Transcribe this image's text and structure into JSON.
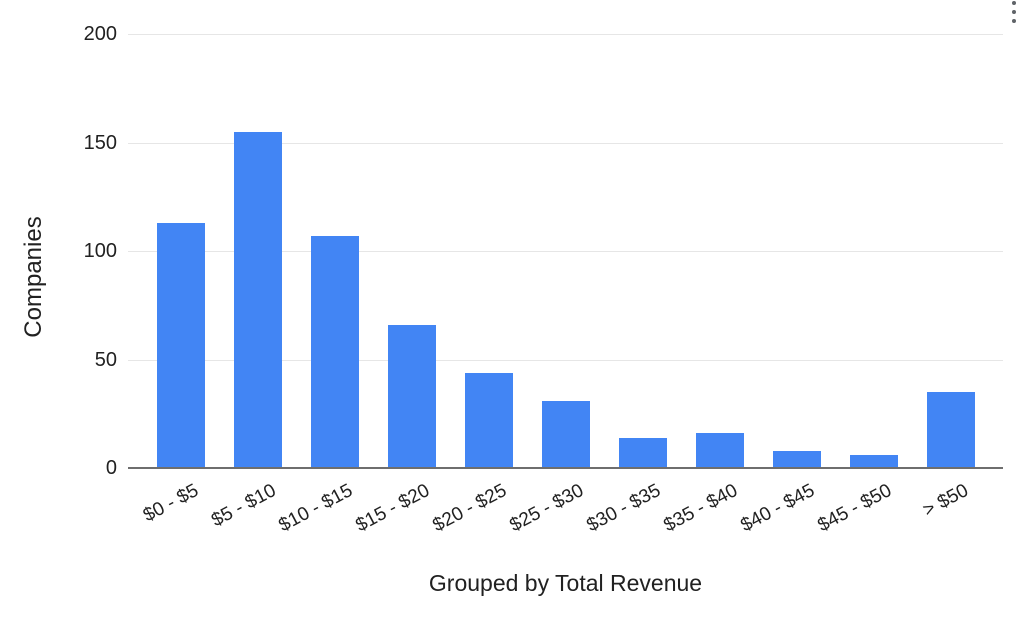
{
  "menu": {
    "more_options_icon": "kebab-menu",
    "dot_color": "#5f6368"
  },
  "chart_data": {
    "type": "bar",
    "title": "",
    "categories": [
      "$0 - $5",
      "$5 - $10",
      "$10 - $15",
      "$15 - $20",
      "$20 - $25",
      "$25 - $30",
      "$30 - $35",
      "$35 - $40",
      "$40 - $45",
      "$45 - $50",
      "> $50"
    ],
    "values": [
      113,
      155,
      107,
      66,
      44,
      31,
      14,
      16,
      8,
      6,
      35
    ],
    "xlabel": "Grouped by Total Revenue",
    "ylabel": "Companies",
    "ylim": [
      0,
      200
    ],
    "yticks": [
      0,
      50,
      100,
      150,
      200
    ],
    "grid": true,
    "legend": "none",
    "bar_color": "#4285f4",
    "gridline_color": "#e6e6e6",
    "baseline_color": "#6e6e6e",
    "text_color": "#212121"
  }
}
